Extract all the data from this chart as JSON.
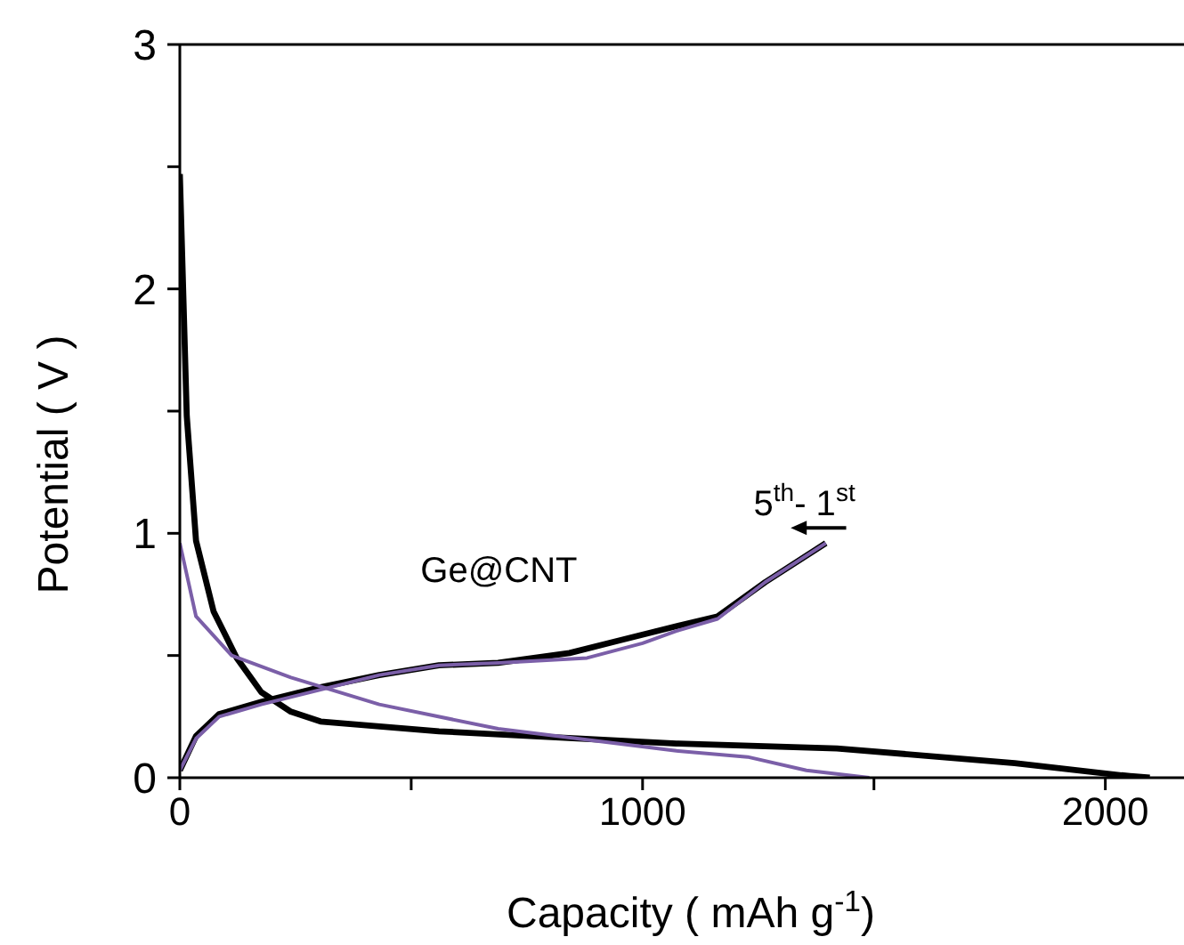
{
  "chart_data": {
    "type": "line",
    "xlabel": "Capacity  ( mAh g$^{-1}$)",
    "ylabel": "Potential ( V )",
    "xlim": [
      0,
      2170
    ],
    "ylim": [
      0,
      3
    ],
    "xticks": [
      0,
      {
        "value": 500,
        "label": null
      },
      1000,
      {
        "value": 1500,
        "label": null
      },
      2000
    ],
    "yticks": [
      0,
      {
        "value": 0.5,
        "label": null
      },
      1,
      {
        "value": 1.5,
        "label": null
      },
      2,
      {
        "value": 2.5,
        "label": null
      },
      3
    ],
    "marker": "none",
    "line_style": "solid",
    "annotations": [
      "Ge@CNT",
      "5$^{th}$- 1$^{st}$"
    ],
    "series": [
      {
        "color": "#000000",
        "x": [
          0,
          15,
          35,
          73,
          123,
          176,
          240,
          304,
          560,
          1073,
          1420,
          1804,
          2035,
          2096
        ],
        "values": [
          2.47,
          1.48,
          0.97,
          0.68,
          0.49,
          0.35,
          0.27,
          0.23,
          0.19,
          0.14,
          0.12,
          0.06,
          0.01,
          0
        ]
      },
      {
        "color": "#000000",
        "x": [
          0,
          35,
          85,
          176,
          304,
          431,
          560,
          688,
          842,
          946,
          1073,
          1162,
          1265,
          1396
        ],
        "values": [
          0.03,
          0.17,
          0.26,
          0.31,
          0.37,
          0.42,
          0.46,
          0.47,
          0.51,
          0.56,
          0.62,
          0.66,
          0.8,
          0.96
        ]
      },
      {
        "color": "#7b5fa8",
        "x": [
          0,
          35,
          112,
          240,
          431,
          688,
          1073,
          1227,
          1354,
          1490
        ],
        "values": [
          0.96,
          0.66,
          0.5,
          0.41,
          0.3,
          0.2,
          0.11,
          0.085,
          0.03,
          0
        ]
      },
      {
        "color": "#7b5fa8",
        "x": [
          0,
          35,
          85,
          176,
          304,
          431,
          560,
          688,
          880,
          1000,
          1073,
          1162,
          1265,
          1396
        ],
        "values": [
          0.03,
          0.16,
          0.25,
          0.3,
          0.36,
          0.42,
          0.46,
          0.47,
          0.49,
          0.55,
          0.6,
          0.65,
          0.8,
          0.96
        ]
      }
    ]
  }
}
